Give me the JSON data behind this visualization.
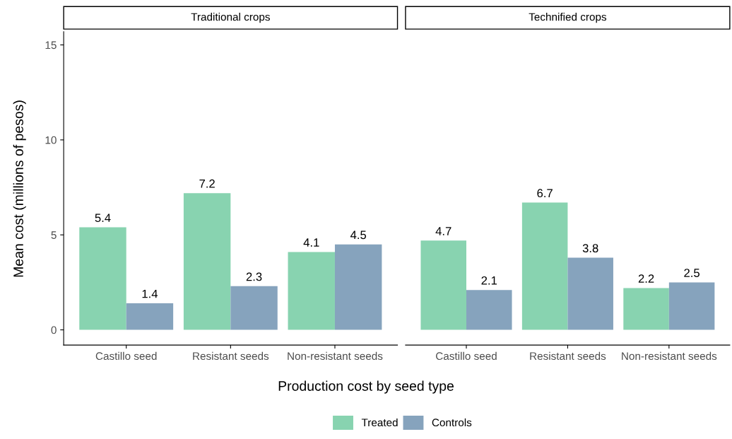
{
  "chart_data": [
    {
      "type": "bar",
      "title": "Traditional crops",
      "xlabel": "Production cost by seed type",
      "ylabel": "Mean cost (millions of pesos)",
      "categories": [
        "Castillo seed",
        "Resistant seeds",
        "Non-resistant seeds"
      ],
      "series": [
        {
          "name": "Treated",
          "color": "#88d3b0",
          "values": [
            5.4,
            7.2,
            4.1
          ]
        },
        {
          "name": "Controls",
          "color": "#86a3bd",
          "values": [
            1.4,
            2.3,
            4.5
          ]
        }
      ],
      "ylim": [
        -0.8,
        15.7
      ],
      "yticks": [
        0,
        5,
        10,
        15
      ],
      "data_labels": true,
      "legend": "bottom",
      "grid": false
    },
    {
      "type": "bar",
      "title": "Technified crops",
      "categories": [
        "Castillo seed",
        "Resistant seeds",
        "Non-resistant seeds"
      ],
      "series": [
        {
          "name": "Treated",
          "color": "#88d3b0",
          "values": [
            4.7,
            6.7,
            2.2
          ]
        },
        {
          "name": "Controls",
          "color": "#86a3bd",
          "values": [
            2.1,
            3.8,
            2.5
          ]
        }
      ],
      "tick_labels": "x",
      "data_labels": true,
      "grid": false
    }
  ]
}
